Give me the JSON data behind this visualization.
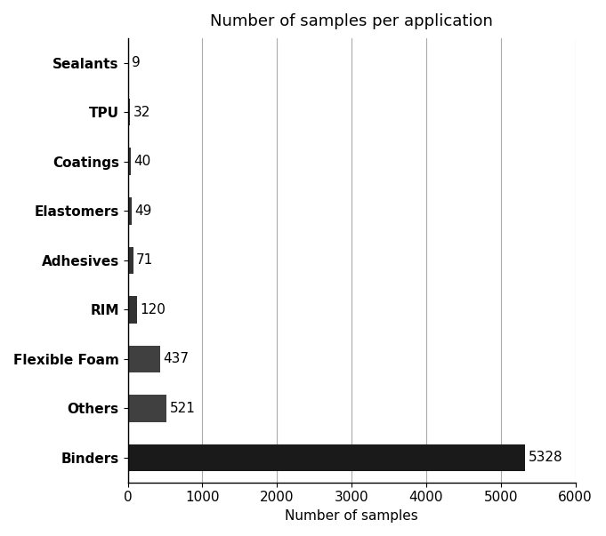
{
  "title": "Number of samples per application",
  "xlabel": "Number of samples",
  "categories": [
    "Binders",
    "Others",
    "Flexible Foam",
    "RIM",
    "Adhesives",
    "Elastomers",
    "Coatings",
    "TPU",
    "Sealants"
  ],
  "values": [
    5328,
    521,
    437,
    120,
    71,
    49,
    40,
    32,
    9
  ],
  "bar_colors": [
    "#1a1a1a",
    "#3a3a3a",
    "#3a3a3a",
    "#3a3a3a",
    "#3a3a3a",
    "#3a3a3a",
    "#3a3a3a",
    "#3a3a3a",
    "#d0d0d0"
  ],
  "xlim": [
    0,
    6000
  ],
  "xticks": [
    0,
    1000,
    2000,
    3000,
    4000,
    5000,
    6000
  ],
  "xtick_labels": [
    "0",
    "1000",
    "2000",
    "3000",
    "4000",
    "5000",
    "6000"
  ],
  "grid_color": "#aaaaaa",
  "background_color": "#ffffff",
  "bar_height": 0.55,
  "title_fontsize": 13,
  "label_fontsize": 11,
  "tick_fontsize": 11,
  "value_fontsize": 11,
  "value_labels": [
    "5328",
    "521",
    "437",
    "120",
    "71",
    "49",
    "40",
    "32",
    "9"
  ]
}
